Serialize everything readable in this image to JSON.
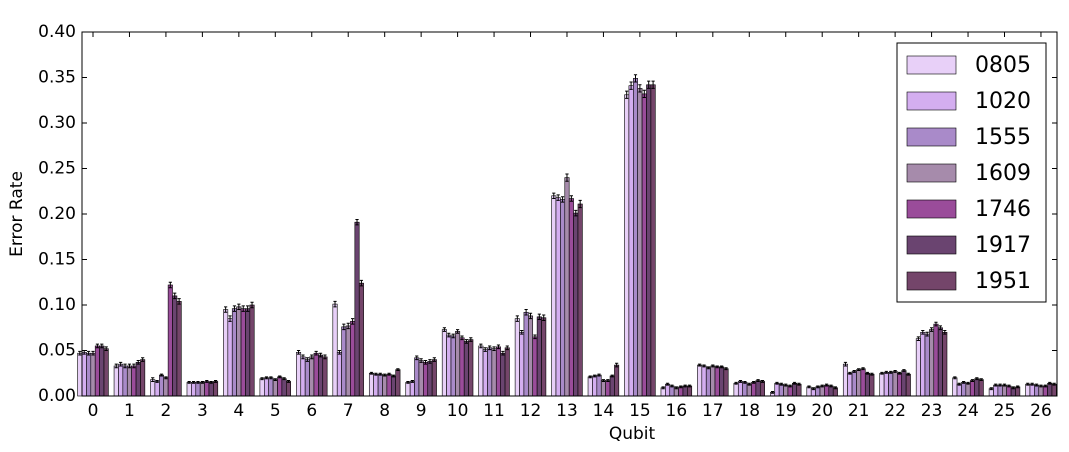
{
  "chart_data": {
    "type": "bar",
    "x_label": "Qubit",
    "y_label": "Error Rate",
    "categories": [
      "0",
      "1",
      "2",
      "3",
      "4",
      "5",
      "6",
      "7",
      "8",
      "9",
      "10",
      "11",
      "12",
      "13",
      "14",
      "15",
      "16",
      "17",
      "18",
      "19",
      "20",
      "21",
      "22",
      "23",
      "24",
      "25",
      "26"
    ],
    "ylim": [
      0,
      0.4
    ],
    "yticks": [
      {
        "value": 0,
        "label": "0.00"
      },
      {
        "value": 0.05,
        "label": "0.05"
      },
      {
        "value": 0.1,
        "label": "0.10"
      },
      {
        "value": 0.15,
        "label": "0.15"
      },
      {
        "value": 0.2,
        "label": "0.20"
      },
      {
        "value": 0.25,
        "label": "0.25"
      },
      {
        "value": 0.3,
        "label": "0.30"
      },
      {
        "value": 0.35,
        "label": "0.35"
      },
      {
        "value": 0.4,
        "label": "0.40"
      }
    ],
    "legend": "upper right",
    "series": [
      {
        "name": "0805",
        "color": "#e8d0f8",
        "values": [
          0.047,
          0.033,
          0.018,
          0.015,
          0.095,
          0.019,
          0.048,
          0.101,
          0.025,
          0.015,
          0.073,
          0.055,
          0.085,
          0.22,
          0.021,
          0.331,
          0.009,
          0.034,
          0.014,
          0.004,
          0.01,
          0.035,
          0.025,
          0.063,
          0.02,
          0.008,
          0.013
        ],
        "errors": [
          0.002,
          0.002,
          0.002,
          0.001,
          0.003,
          0.001,
          0.002,
          0.003,
          0.001,
          0.001,
          0.002,
          0.002,
          0.003,
          0.003,
          0.001,
          0.004,
          0.001,
          0.001,
          0.001,
          0.001,
          0.001,
          0.002,
          0.001,
          0.002,
          0.001,
          0.001,
          0.001
        ]
      },
      {
        "name": "1020",
        "color": "#d4aef0",
        "values": [
          0.048,
          0.035,
          0.016,
          0.015,
          0.085,
          0.02,
          0.043,
          0.048,
          0.024,
          0.016,
          0.067,
          0.051,
          0.07,
          0.218,
          0.022,
          0.341,
          0.013,
          0.033,
          0.016,
          0.014,
          0.008,
          0.025,
          0.026,
          0.07,
          0.013,
          0.012,
          0.013
        ],
        "errors": [
          0.002,
          0.002,
          0.001,
          0.001,
          0.003,
          0.001,
          0.002,
          0.002,
          0.001,
          0.001,
          0.002,
          0.002,
          0.002,
          0.003,
          0.001,
          0.004,
          0.001,
          0.001,
          0.001,
          0.001,
          0.001,
          0.001,
          0.001,
          0.002,
          0.001,
          0.001,
          0.001
        ]
      },
      {
        "name": "1555",
        "color": "#a98ac9",
        "values": [
          0.047,
          0.033,
          0.023,
          0.015,
          0.096,
          0.02,
          0.04,
          0.076,
          0.024,
          0.042,
          0.066,
          0.053,
          0.092,
          0.216,
          0.023,
          0.349,
          0.011,
          0.031,
          0.015,
          0.013,
          0.01,
          0.027,
          0.026,
          0.068,
          0.015,
          0.012,
          0.012
        ],
        "errors": [
          0.002,
          0.002,
          0.001,
          0.001,
          0.003,
          0.001,
          0.002,
          0.003,
          0.001,
          0.002,
          0.002,
          0.002,
          0.003,
          0.003,
          0.001,
          0.004,
          0.001,
          0.001,
          0.001,
          0.001,
          0.001,
          0.001,
          0.001,
          0.002,
          0.001,
          0.001,
          0.001
        ]
      },
      {
        "name": "1609",
        "color": "#a68bab",
        "values": [
          0.047,
          0.033,
          0.02,
          0.015,
          0.098,
          0.018,
          0.043,
          0.077,
          0.023,
          0.039,
          0.071,
          0.052,
          0.088,
          0.24,
          0.017,
          0.338,
          0.009,
          0.033,
          0.013,
          0.012,
          0.011,
          0.029,
          0.027,
          0.073,
          0.014,
          0.012,
          0.011
        ],
        "errors": [
          0.002,
          0.002,
          0.001,
          0.001,
          0.003,
          0.001,
          0.002,
          0.003,
          0.001,
          0.002,
          0.002,
          0.002,
          0.003,
          0.004,
          0.001,
          0.004,
          0.001,
          0.001,
          0.001,
          0.001,
          0.001,
          0.001,
          0.001,
          0.002,
          0.001,
          0.001,
          0.001
        ]
      },
      {
        "name": "1746",
        "color": "#9a4c9a",
        "values": [
          0.055,
          0.033,
          0.122,
          0.016,
          0.096,
          0.021,
          0.047,
          0.082,
          0.024,
          0.037,
          0.064,
          0.054,
          0.065,
          0.217,
          0.017,
          0.332,
          0.01,
          0.032,
          0.015,
          0.011,
          0.012,
          0.03,
          0.025,
          0.079,
          0.017,
          0.011,
          0.011
        ],
        "errors": [
          0.002,
          0.002,
          0.003,
          0.001,
          0.003,
          0.001,
          0.002,
          0.003,
          0.001,
          0.002,
          0.002,
          0.002,
          0.002,
          0.003,
          0.001,
          0.004,
          0.001,
          0.001,
          0.001,
          0.001,
          0.001,
          0.001,
          0.001,
          0.002,
          0.001,
          0.001,
          0.001
        ]
      },
      {
        "name": "1917",
        "color": "#6a4470",
        "values": [
          0.055,
          0.037,
          0.11,
          0.015,
          0.096,
          0.019,
          0.045,
          0.191,
          0.022,
          0.038,
          0.06,
          0.047,
          0.087,
          0.201,
          0.022,
          0.342,
          0.011,
          0.032,
          0.017,
          0.014,
          0.011,
          0.025,
          0.028,
          0.075,
          0.019,
          0.009,
          0.014
        ],
        "errors": [
          0.002,
          0.002,
          0.003,
          0.001,
          0.003,
          0.001,
          0.002,
          0.003,
          0.001,
          0.002,
          0.002,
          0.002,
          0.003,
          0.003,
          0.001,
          0.004,
          0.001,
          0.001,
          0.001,
          0.001,
          0.001,
          0.001,
          0.001,
          0.002,
          0.001,
          0.001,
          0.001
        ]
      },
      {
        "name": "1951",
        "color": "#74456a",
        "values": [
          0.052,
          0.04,
          0.104,
          0.016,
          0.1,
          0.016,
          0.043,
          0.124,
          0.029,
          0.04,
          0.062,
          0.053,
          0.086,
          0.211,
          0.034,
          0.342,
          0.011,
          0.03,
          0.016,
          0.013,
          0.009,
          0.024,
          0.024,
          0.07,
          0.018,
          0.01,
          0.013
        ],
        "errors": [
          0.002,
          0.002,
          0.003,
          0.001,
          0.003,
          0.001,
          0.002,
          0.003,
          0.001,
          0.002,
          0.002,
          0.002,
          0.003,
          0.004,
          0.002,
          0.004,
          0.001,
          0.001,
          0.001,
          0.001,
          0.001,
          0.001,
          0.001,
          0.002,
          0.001,
          0.001,
          0.001
        ]
      }
    ]
  }
}
